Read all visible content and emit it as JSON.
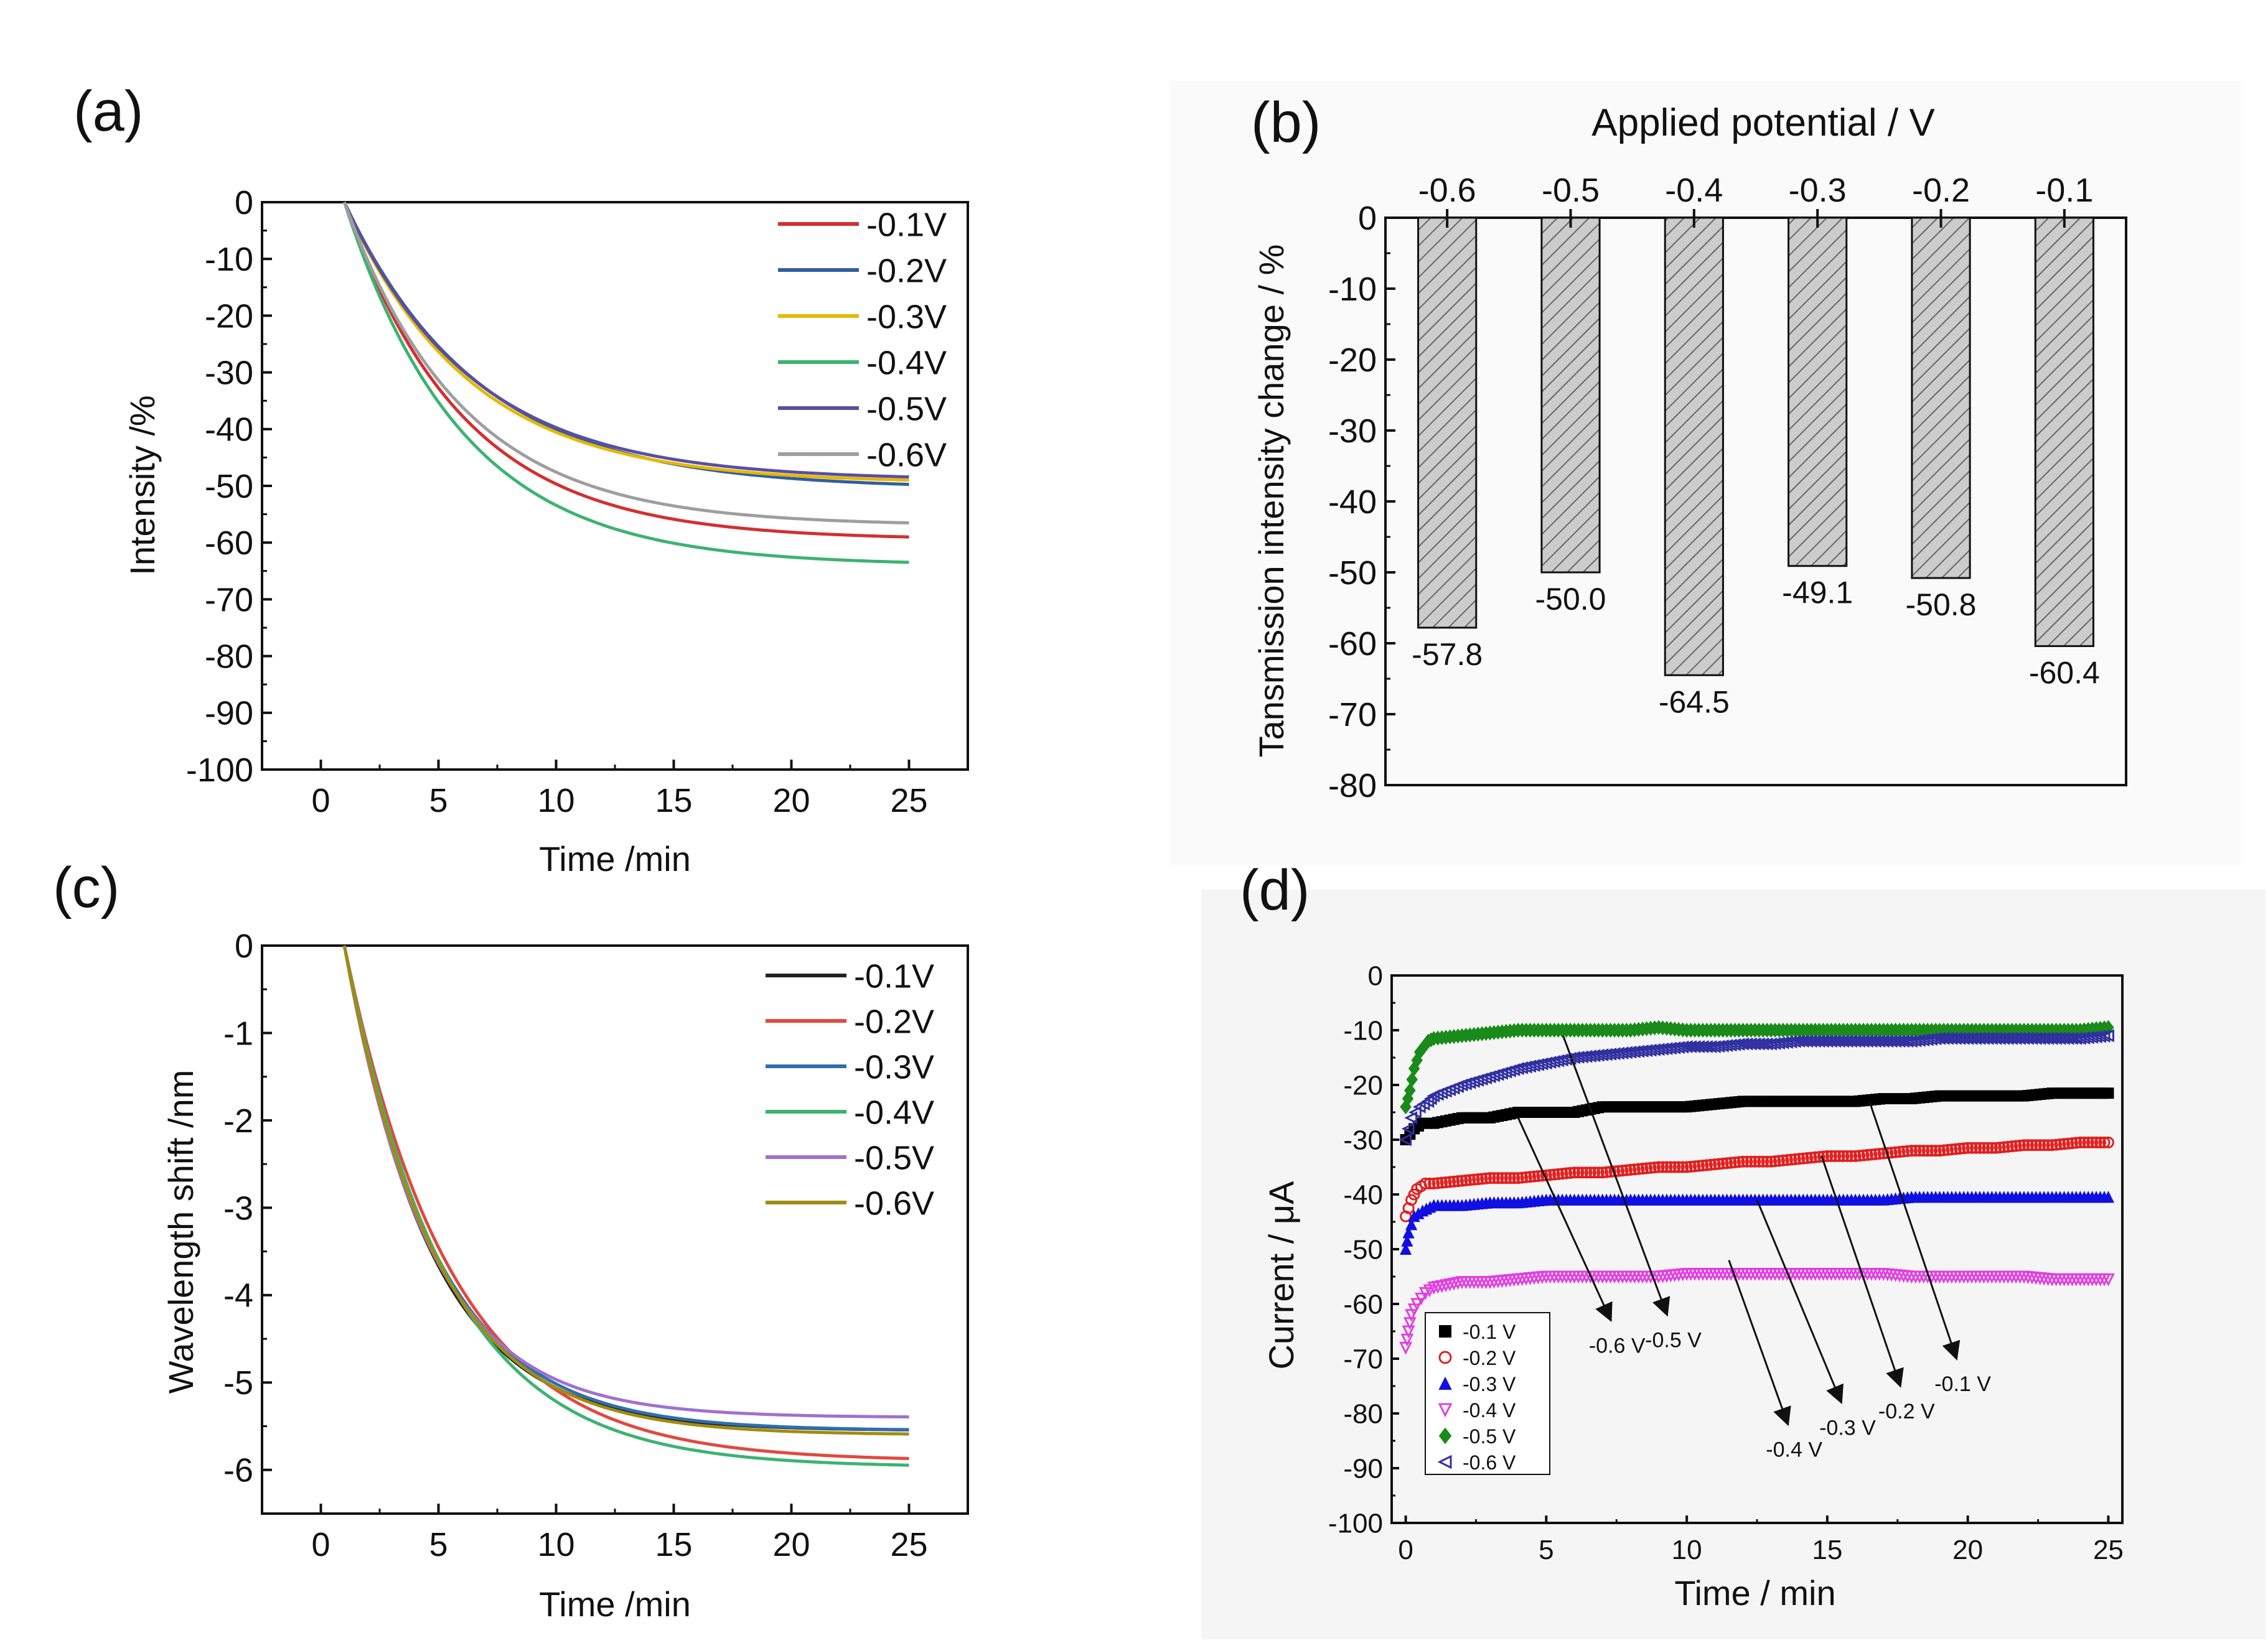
{
  "figure": {
    "background": "#ffffff",
    "axis_color": "#111111"
  },
  "chart_data": [
    {
      "id": "a",
      "panel_label": "(a)",
      "type": "line",
      "title": "",
      "xlabel": "Time /min",
      "ylabel": "Intensity /%",
      "xlim": [
        -2.5,
        27.5
      ],
      "ylim": [
        -100,
        0
      ],
      "xticks": [
        0,
        5,
        10,
        15,
        20,
        25
      ],
      "yticks": [
        0,
        -10,
        -20,
        -30,
        -40,
        -50,
        -60,
        -70,
        -80,
        -90,
        -100
      ],
      "legend_position": "top-right",
      "series": [
        {
          "name": "-0.1V",
          "color": "#d32f2f",
          "start": 1,
          "end": 25,
          "final": -59.5,
          "k": 0.2
        },
        {
          "name": "-0.2V",
          "color": "#2f5fa0",
          "start": 1,
          "end": 25,
          "final": -50.5,
          "k": 0.175
        },
        {
          "name": "-0.3V",
          "color": "#e6b800",
          "start": 1,
          "end": 25,
          "final": -49.5,
          "k": 0.19
        },
        {
          "name": "-0.4V",
          "color": "#3cb371",
          "start": 1,
          "end": 25,
          "final": -64,
          "k": 0.2
        },
        {
          "name": "-0.5V",
          "color": "#5a4fa0",
          "start": 1,
          "end": 25,
          "final": -49,
          "k": 0.185
        },
        {
          "name": "-0.6V",
          "color": "#9e9e9e",
          "start": 1,
          "end": 25,
          "final": -57,
          "k": 0.2
        }
      ]
    },
    {
      "id": "b",
      "panel_label": "(b)",
      "type": "bar",
      "title": "Applied potential / V",
      "xlabel": "",
      "ylabel": "Tansmission intensity change / %",
      "ylim": [
        -80,
        0
      ],
      "yticks": [
        0,
        -10,
        -20,
        -30,
        -40,
        -50,
        -60,
        -70,
        -80
      ],
      "x_axis_position": "top",
      "categories": [
        "-0.6",
        "-0.5",
        "-0.4",
        "-0.3",
        "-0.2",
        "-0.1"
      ],
      "values": [
        -57.8,
        -50.0,
        -64.5,
        -49.1,
        -50.8,
        -60.4
      ],
      "value_labels": [
        "-57.8",
        "-50.0",
        "-64.5",
        "-49.1",
        "-50.8",
        "-60.4"
      ],
      "bar_fill": "#cccccc",
      "bar_hatch": "#666666"
    },
    {
      "id": "c",
      "panel_label": "(c)",
      "type": "line",
      "title": "",
      "xlabel": "Time /min",
      "ylabel": "Wavelength shift /nm",
      "xlim": [
        -2.5,
        27.5
      ],
      "ylim": [
        -6.5,
        0
      ],
      "xticks": [
        0,
        5,
        10,
        15,
        20,
        25
      ],
      "yticks": [
        0,
        -1,
        -2,
        -3,
        -4,
        -5,
        -6
      ],
      "legend_position": "top-right",
      "series": [
        {
          "name": "-0.1V",
          "color": "#222222",
          "start": 1,
          "end": 25,
          "final": -5.55,
          "k": 0.27
        },
        {
          "name": "-0.2V",
          "color": "#e04a3f",
          "start": 1,
          "end": 25,
          "final": -5.9,
          "k": 0.22
        },
        {
          "name": "-0.3V",
          "color": "#2f6fb0",
          "start": 1,
          "end": 25,
          "final": -5.55,
          "k": 0.26
        },
        {
          "name": "-0.4V",
          "color": "#3cb371",
          "start": 1,
          "end": 25,
          "final": -5.97,
          "k": 0.23
        },
        {
          "name": "-0.5V",
          "color": "#a070d0",
          "start": 1,
          "end": 25,
          "final": -5.4,
          "k": 0.28
        },
        {
          "name": "-0.6V",
          "color": "#a08c10",
          "start": 1,
          "end": 25,
          "final": -5.6,
          "k": 0.26
        }
      ]
    },
    {
      "id": "d",
      "panel_label": "(d)",
      "type": "scatter",
      "title": "",
      "xlabel": "Time / min",
      "ylabel": "Current / μA",
      "xlim": [
        -0.5,
        25.5
      ],
      "ylim": [
        -100,
        0
      ],
      "xticks": [
        0,
        5,
        10,
        15,
        20,
        25
      ],
      "yticks": [
        0,
        -10,
        -20,
        -30,
        -40,
        -50,
        -60,
        -70,
        -80,
        -90,
        -100
      ],
      "legend_position": "bottom-left",
      "series": [
        {
          "name": "-0.1 V",
          "marker": "square",
          "color": "#000000",
          "points": [
            [
              0,
              -30
            ],
            [
              0.3,
              -28
            ],
            [
              0.6,
              -27
            ],
            [
              1,
              -27
            ],
            [
              2,
              -26
            ],
            [
              3,
              -26
            ],
            [
              4,
              -25
            ],
            [
              5,
              -25
            ],
            [
              6,
              -25
            ],
            [
              7,
              -24
            ],
            [
              8,
              -24
            ],
            [
              9,
              -24
            ],
            [
              10,
              -24
            ],
            [
              11,
              -23.5
            ],
            [
              12,
              -23
            ],
            [
              13,
              -23
            ],
            [
              14,
              -23
            ],
            [
              15,
              -23
            ],
            [
              16,
              -23
            ],
            [
              17,
              -22.5
            ],
            [
              18,
              -22.5
            ],
            [
              19,
              -22
            ],
            [
              20,
              -22
            ],
            [
              21,
              -22
            ],
            [
              22,
              -22
            ],
            [
              23,
              -21.5
            ],
            [
              24,
              -21.5
            ],
            [
              25,
              -21.5
            ]
          ]
        },
        {
          "name": "-0.2 V",
          "marker": "circle",
          "color": "#e02020",
          "points": [
            [
              0,
              -44
            ],
            [
              0.2,
              -41
            ],
            [
              0.4,
              -39
            ],
            [
              0.7,
              -38
            ],
            [
              1,
              -38
            ],
            [
              2,
              -37.5
            ],
            [
              3,
              -37
            ],
            [
              4,
              -37
            ],
            [
              5,
              -36.5
            ],
            [
              6,
              -36
            ],
            [
              7,
              -36
            ],
            [
              8,
              -35.5
            ],
            [
              9,
              -35
            ],
            [
              10,
              -35
            ],
            [
              11,
              -34.5
            ],
            [
              12,
              -34
            ],
            [
              13,
              -34
            ],
            [
              14,
              -33.5
            ],
            [
              15,
              -33
            ],
            [
              16,
              -33
            ],
            [
              17,
              -32.5
            ],
            [
              18,
              -32
            ],
            [
              19,
              -32
            ],
            [
              20,
              -31.5
            ],
            [
              21,
              -31.5
            ],
            [
              22,
              -31
            ],
            [
              23,
              -31
            ],
            [
              24,
              -30.5
            ],
            [
              25,
              -30.5
            ]
          ]
        },
        {
          "name": "-0.3 V",
          "marker": "triangle-up",
          "color": "#1010e0",
          "points": [
            [
              0,
              -50
            ],
            [
              0.1,
              -47
            ],
            [
              0.3,
              -44
            ],
            [
              0.6,
              -43
            ],
            [
              1,
              -42
            ],
            [
              2,
              -42
            ],
            [
              3,
              -41.5
            ],
            [
              4,
              -41.5
            ],
            [
              5,
              -41
            ],
            [
              6,
              -41
            ],
            [
              7,
              -41
            ],
            [
              8,
              -41
            ],
            [
              9,
              -41
            ],
            [
              10,
              -41
            ],
            [
              11,
              -41
            ],
            [
              12,
              -41
            ],
            [
              13,
              -41
            ],
            [
              14,
              -41
            ],
            [
              15,
              -41
            ],
            [
              16,
              -41
            ],
            [
              17,
              -41
            ],
            [
              18,
              -40.5
            ],
            [
              19,
              -40.5
            ],
            [
              20,
              -40.5
            ],
            [
              21,
              -40.5
            ],
            [
              22,
              -40.5
            ],
            [
              23,
              -40.5
            ],
            [
              24,
              -40.5
            ],
            [
              25,
              -40.5
            ]
          ]
        },
        {
          "name": "-0.4 V",
          "marker": "triangle-down",
          "color": "#e040e0",
          "points": [
            [
              0,
              -68
            ],
            [
              0.1,
              -65
            ],
            [
              0.2,
              -62
            ],
            [
              0.4,
              -60
            ],
            [
              0.7,
              -58
            ],
            [
              1,
              -57
            ],
            [
              2,
              -56
            ],
            [
              3,
              -56
            ],
            [
              4,
              -55.5
            ],
            [
              5,
              -55
            ],
            [
              6,
              -55
            ],
            [
              7,
              -55
            ],
            [
              8,
              -55
            ],
            [
              9,
              -55
            ],
            [
              10,
              -54.5
            ],
            [
              11,
              -54.5
            ],
            [
              12,
              -54.5
            ],
            [
              13,
              -54.5
            ],
            [
              14,
              -54.5
            ],
            [
              15,
              -54.5
            ],
            [
              16,
              -54.5
            ],
            [
              17,
              -54.5
            ],
            [
              18,
              -55
            ],
            [
              19,
              -55
            ],
            [
              20,
              -55
            ],
            [
              21,
              -55
            ],
            [
              22,
              -55
            ],
            [
              23,
              -55.5
            ],
            [
              24,
              -55.5
            ],
            [
              25,
              -55.5
            ]
          ]
        },
        {
          "name": "-0.5 V",
          "marker": "diamond",
          "color": "#1a8a1a",
          "points": [
            [
              0,
              -24
            ],
            [
              0.15,
              -21
            ],
            [
              0.3,
              -17
            ],
            [
              0.5,
              -14
            ],
            [
              0.8,
              -12
            ],
            [
              1,
              -11.5
            ],
            [
              2,
              -11
            ],
            [
              3,
              -10.5
            ],
            [
              4,
              -10
            ],
            [
              5,
              -10
            ],
            [
              6,
              -10
            ],
            [
              7,
              -10
            ],
            [
              8,
              -10
            ],
            [
              9,
              -9.5
            ],
            [
              10,
              -10
            ],
            [
              11,
              -10
            ],
            [
              12,
              -10
            ],
            [
              13,
              -10
            ],
            [
              14,
              -10
            ],
            [
              15,
              -10
            ],
            [
              16,
              -10
            ],
            [
              17,
              -10
            ],
            [
              18,
              -10
            ],
            [
              19,
              -10
            ],
            [
              20,
              -10
            ],
            [
              21,
              -10
            ],
            [
              22,
              -10
            ],
            [
              23,
              -10
            ],
            [
              24,
              -10
            ],
            [
              25,
              -9.5
            ]
          ]
        },
        {
          "name": "-0.6 V",
          "marker": "triangle-left",
          "color": "#3030a0",
          "points": [
            [
              0,
              -30
            ],
            [
              0.2,
              -26
            ],
            [
              0.5,
              -24
            ],
            [
              0.8,
              -23
            ],
            [
              1,
              -22
            ],
            [
              2,
              -20
            ],
            [
              3,
              -18.5
            ],
            [
              4,
              -17
            ],
            [
              5,
              -16
            ],
            [
              6,
              -15
            ],
            [
              7,
              -14.5
            ],
            [
              8,
              -14
            ],
            [
              9,
              -13.5
            ],
            [
              10,
              -13
            ],
            [
              11,
              -13
            ],
            [
              12,
              -12.5
            ],
            [
              13,
              -12.5
            ],
            [
              14,
              -12
            ],
            [
              15,
              -12
            ],
            [
              16,
              -12
            ],
            [
              17,
              -12
            ],
            [
              18,
              -12
            ],
            [
              19,
              -11.5
            ],
            [
              20,
              -11.5
            ],
            [
              21,
              -11.5
            ],
            [
              22,
              -11.5
            ],
            [
              23,
              -11.5
            ],
            [
              24,
              -11.5
            ],
            [
              25,
              -11
            ]
          ]
        }
      ],
      "annotations": [
        {
          "text": "-0.6 V",
          "start": [
            4,
            -26
          ],
          "end": [
            7.3,
            -63
          ]
        },
        {
          "text": "-0.5 V",
          "start": [
            5.6,
            -11
          ],
          "end": [
            9.3,
            -62
          ]
        },
        {
          "text": "-0.4 V",
          "start": [
            11.5,
            -52
          ],
          "end": [
            13.6,
            -82
          ]
        },
        {
          "text": "-0.3 V",
          "start": [
            12.5,
            -41
          ],
          "end": [
            15.5,
            -78
          ]
        },
        {
          "text": "-0.2 V",
          "start": [
            14.8,
            -33
          ],
          "end": [
            17.6,
            -75
          ]
        },
        {
          "text": "-0.1 V",
          "start": [
            16.5,
            -23
          ],
          "end": [
            19.6,
            -70
          ]
        }
      ]
    }
  ]
}
